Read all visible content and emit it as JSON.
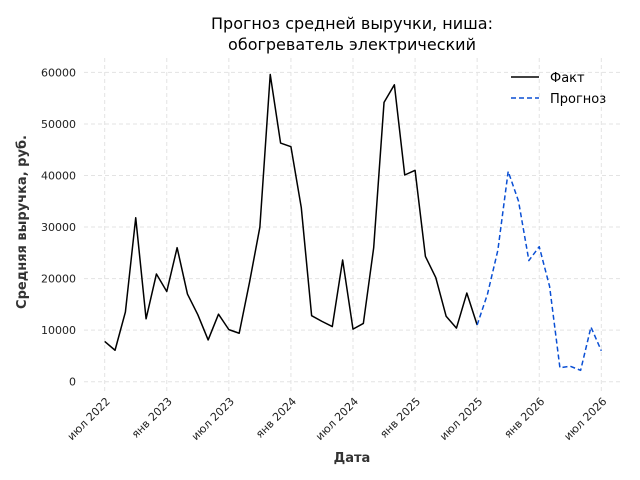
{
  "chart_data": {
    "type": "line",
    "title_lines": [
      "Прогноз средней выручки, ниша:",
      "обогреватель электрический"
    ],
    "xlabel": "Дата",
    "ylabel": "Средняя выручка, руб.",
    "ylim": [
      0,
      60000
    ],
    "y_ticks": [
      0,
      10000,
      20000,
      30000,
      40000,
      50000,
      60000
    ],
    "y_tick_labels": [
      "0",
      "10000",
      "20000",
      "30000",
      "40000",
      "50000",
      "60000"
    ],
    "x_ticks": [
      {
        "date": "2022-07",
        "label": "июл 2022"
      },
      {
        "date": "2023-01",
        "label": "янв 2023"
      },
      {
        "date": "2023-07",
        "label": "июл 2023"
      },
      {
        "date": "2024-01",
        "label": "янв 2024"
      },
      {
        "date": "2024-07",
        "label": "июл 2024"
      },
      {
        "date": "2025-01",
        "label": "янв 2025"
      },
      {
        "date": "2025-07",
        "label": "июл 2025"
      },
      {
        "date": "2026-01",
        "label": "янв 2026"
      },
      {
        "date": "2026-07",
        "label": "июл 2026"
      }
    ],
    "grid": true,
    "legend_position": "top-right",
    "series": [
      {
        "name": "Факт",
        "color": "#000000",
        "dash": "solid",
        "points": [
          [
            "2022-07",
            7800
          ],
          [
            "2022-08",
            6100
          ],
          [
            "2022-09",
            13500
          ],
          [
            "2022-10",
            31800
          ],
          [
            "2022-11",
            12200
          ],
          [
            "2022-12",
            20900
          ],
          [
            "2023-01",
            17500
          ],
          [
            "2023-02",
            26000
          ],
          [
            "2023-03",
            17000
          ],
          [
            "2023-04",
            13000
          ],
          [
            "2023-05",
            8100
          ],
          [
            "2023-06",
            13100
          ],
          [
            "2023-07",
            10100
          ],
          [
            "2023-08",
            9400
          ],
          [
            "2023-09",
            19300
          ],
          [
            "2023-10",
            30000
          ],
          [
            "2023-11",
            59600
          ],
          [
            "2023-12",
            46300
          ],
          [
            "2024-01",
            45600
          ],
          [
            "2024-02",
            33800
          ],
          [
            "2024-03",
            12800
          ],
          [
            "2024-04",
            11700
          ],
          [
            "2024-05",
            10700
          ],
          [
            "2024-06",
            23600
          ],
          [
            "2024-07",
            10200
          ],
          [
            "2024-08",
            11300
          ],
          [
            "2024-09",
            26000
          ],
          [
            "2024-10",
            54200
          ],
          [
            "2024-11",
            57600
          ],
          [
            "2024-12",
            40100
          ],
          [
            "2025-01",
            41000
          ],
          [
            "2025-02",
            24300
          ],
          [
            "2025-03",
            20200
          ],
          [
            "2025-04",
            12700
          ],
          [
            "2025-05",
            10400
          ],
          [
            "2025-06",
            17200
          ],
          [
            "2025-07",
            11000
          ]
        ]
      },
      {
        "name": "Прогноз",
        "color": "#0a4fd4",
        "dash": "dashed",
        "points": [
          [
            "2025-07",
            11000
          ],
          [
            "2025-08",
            17000
          ],
          [
            "2025-09",
            25500
          ],
          [
            "2025-10",
            40800
          ],
          [
            "2025-11",
            35000
          ],
          [
            "2025-12",
            23500
          ],
          [
            "2026-01",
            26200
          ],
          [
            "2026-02",
            18500
          ],
          [
            "2026-03",
            2700
          ],
          [
            "2026-04",
            3000
          ],
          [
            "2026-05",
            2200
          ],
          [
            "2026-06",
            10600
          ],
          [
            "2026-07",
            6000
          ]
        ]
      }
    ]
  }
}
